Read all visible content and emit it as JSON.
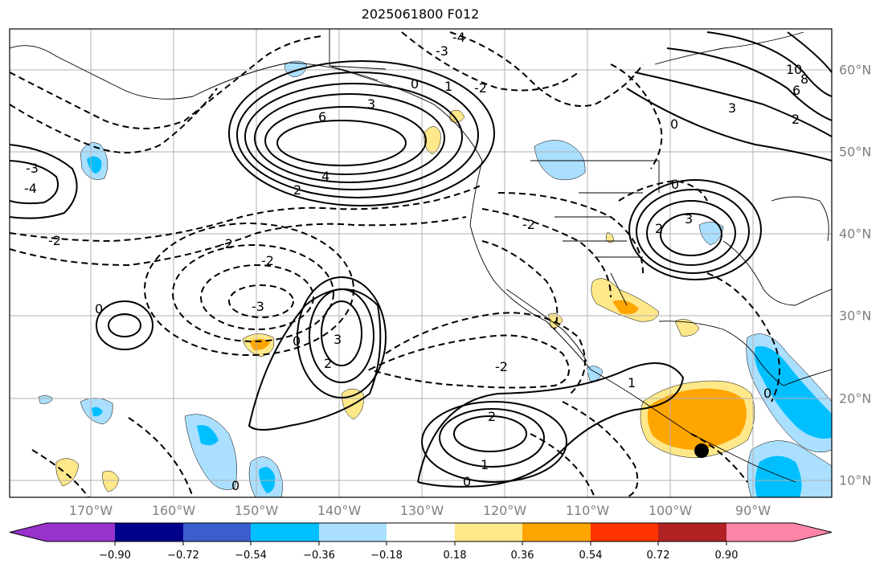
{
  "title": "2025061800 F012",
  "lon_labels": [
    "170°W",
    "160°W",
    "150°W",
    "140°W",
    "130°W",
    "120°W",
    "110°W",
    "100°W",
    "90°W"
  ],
  "lat_labels": [
    "60°N",
    "50°N",
    "40°N",
    "30°N",
    "20°N",
    "10°N"
  ],
  "colorbar": {
    "ticks": [
      "−0.90",
      "−0.72",
      "−0.54",
      "−0.36",
      "−0.18",
      "0.18",
      "0.36",
      "0.54",
      "0.72",
      "0.90"
    ],
    "colors": [
      "#9932cc",
      "#00008b",
      "#3a5fcd",
      "#00bfff",
      "#aadfff",
      "#ffffff",
      "#ffe88a",
      "#ffa500",
      "#ff3300",
      "#b22222",
      "#ff85a8"
    ]
  },
  "contour_labels": [
    "6",
    "3",
    "4",
    "2",
    "0",
    "-2",
    "-3",
    "-4",
    "1",
    "10",
    "8",
    "6",
    "3",
    "2",
    "0",
    "3",
    "2",
    "0",
    "-2",
    "-3",
    "3",
    "2",
    "0",
    "2",
    "1",
    "0",
    "-2",
    "1",
    "0",
    "-2",
    "-4",
    "-2",
    "0",
    "-3",
    "-2",
    "0"
  ],
  "marker": "storm-center-dot"
}
